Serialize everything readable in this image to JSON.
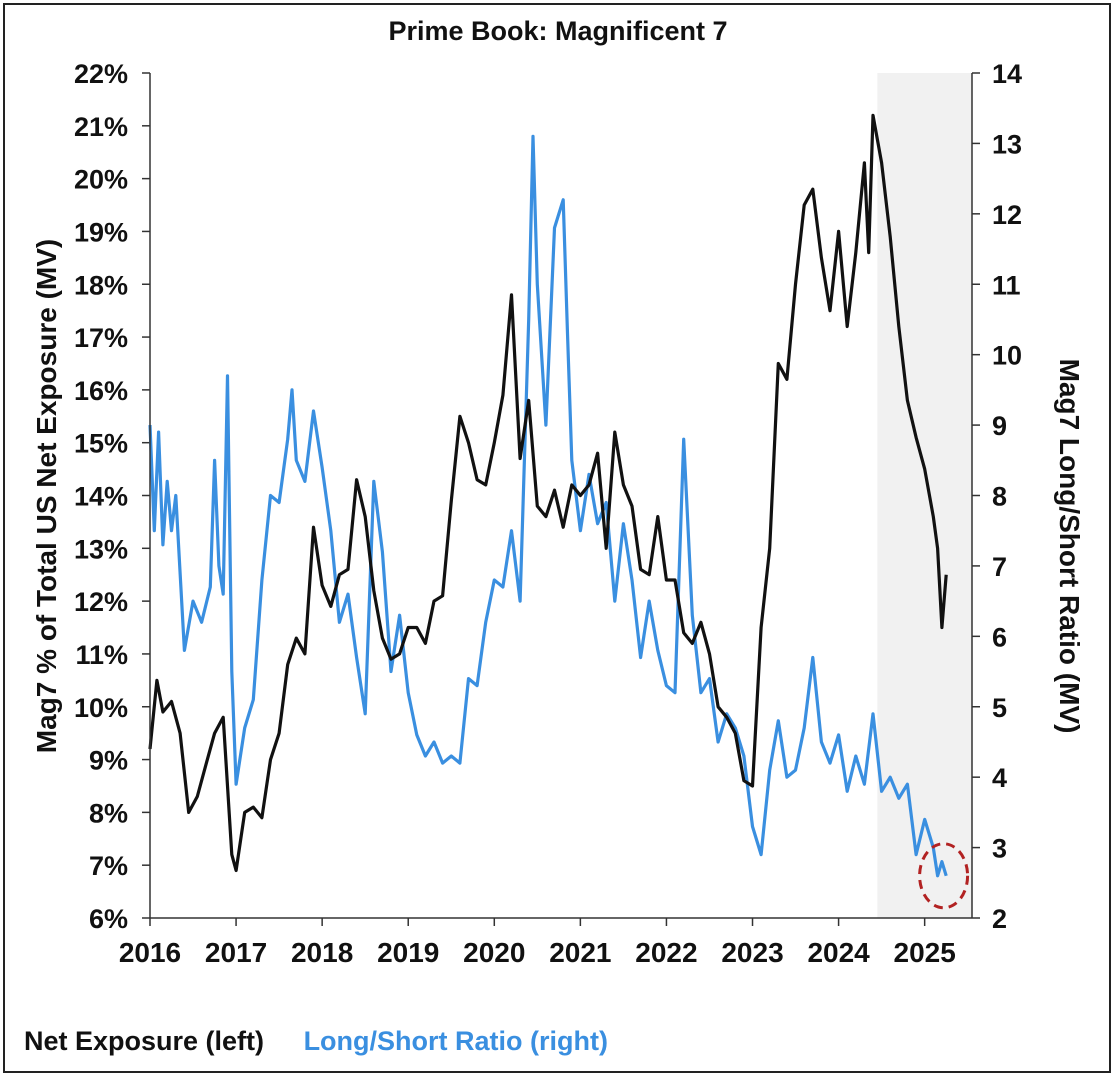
{
  "chart_data": {
    "type": "line",
    "title": "Prime Book: Magnificent 7",
    "y_left_label": "Mag7 % of Total US Net Exposure (MV)",
    "y_right_label": "Mag7 Long/Short Ratio (MV)",
    "x_ticks": [
      "2016",
      "2017",
      "2018",
      "2019",
      "2020",
      "2021",
      "2022",
      "2023",
      "2024",
      "2025"
    ],
    "y_left_ticks": [
      "6%",
      "7%",
      "8%",
      "9%",
      "10%",
      "11%",
      "12%",
      "13%",
      "14%",
      "15%",
      "16%",
      "17%",
      "18%",
      "19%",
      "20%",
      "21%",
      "22%"
    ],
    "y_right_ticks": [
      "2",
      "3",
      "4",
      "5",
      "6",
      "7",
      "8",
      "9",
      "10",
      "11",
      "12",
      "13",
      "14"
    ],
    "y_left_range": [
      6,
      22
    ],
    "y_right_range": [
      2,
      14
    ],
    "x_range": [
      2016.0,
      2025.55
    ],
    "shaded_region": [
      2024.45,
      2025.55
    ],
    "highlight_point": {
      "x": 2025.22,
      "y_right": 2.6
    },
    "series": [
      {
        "name": "Net Exposure (left)",
        "axis": "left",
        "color": "#111111",
        "x": [
          2016.0,
          2016.08,
          2016.15,
          2016.25,
          2016.35,
          2016.45,
          2016.55,
          2016.65,
          2016.75,
          2016.85,
          2016.95,
          2017.0,
          2017.1,
          2017.2,
          2017.3,
          2017.4,
          2017.5,
          2017.6,
          2017.7,
          2017.8,
          2017.9,
          2018.0,
          2018.1,
          2018.2,
          2018.3,
          2018.4,
          2018.5,
          2018.6,
          2018.7,
          2018.8,
          2018.9,
          2019.0,
          2019.1,
          2019.2,
          2019.3,
          2019.4,
          2019.5,
          2019.6,
          2019.7,
          2019.8,
          2019.9,
          2020.0,
          2020.1,
          2020.2,
          2020.3,
          2020.4,
          2020.5,
          2020.6,
          2020.7,
          2020.8,
          2020.9,
          2021.0,
          2021.1,
          2021.2,
          2021.3,
          2021.4,
          2021.5,
          2021.6,
          2021.7,
          2021.8,
          2021.9,
          2022.0,
          2022.1,
          2022.2,
          2022.3,
          2022.4,
          2022.5,
          2022.6,
          2022.7,
          2022.8,
          2022.9,
          2023.0,
          2023.1,
          2023.2,
          2023.3,
          2023.4,
          2023.5,
          2023.6,
          2023.7,
          2023.8,
          2023.9,
          2024.0,
          2024.1,
          2024.2,
          2024.3,
          2024.35,
          2024.4,
          2024.5,
          2024.6,
          2024.7,
          2024.8,
          2024.9,
          2025.0,
          2025.1,
          2025.15,
          2025.2,
          2025.25
        ],
        "values": [
          9.2,
          10.5,
          9.9,
          10.1,
          9.5,
          8.0,
          8.3,
          8.9,
          9.5,
          9.8,
          7.2,
          6.9,
          8.0,
          8.1,
          7.9,
          9.0,
          9.5,
          10.8,
          11.3,
          11.0,
          13.4,
          12.3,
          11.9,
          12.5,
          12.6,
          14.3,
          13.6,
          12.2,
          11.3,
          10.9,
          11.0,
          11.5,
          11.5,
          11.2,
          12.0,
          12.1,
          13.9,
          15.5,
          15.0,
          14.3,
          14.2,
          15.0,
          15.9,
          17.8,
          14.7,
          15.8,
          13.8,
          13.6,
          14.1,
          13.4,
          14.2,
          14.0,
          14.2,
          14.8,
          13.0,
          15.2,
          14.2,
          13.8,
          12.6,
          12.5,
          13.6,
          12.4,
          12.4,
          11.4,
          11.2,
          11.6,
          11.0,
          10.0,
          9.8,
          9.5,
          8.6,
          8.5,
          11.5,
          13.0,
          16.5,
          16.2,
          18.0,
          19.5,
          19.8,
          18.5,
          17.5,
          19.0,
          17.2,
          18.6,
          20.3,
          18.6,
          21.2,
          20.3,
          18.9,
          17.2,
          15.8,
          15.1,
          14.5,
          13.6,
          13.0,
          11.5,
          12.5
        ]
      },
      {
        "name": "Long/Short Ratio (right)",
        "axis": "right",
        "color": "#3a8fe0",
        "x": [
          2016.0,
          2016.05,
          2016.1,
          2016.15,
          2016.2,
          2016.25,
          2016.3,
          2016.4,
          2016.5,
          2016.6,
          2016.7,
          2016.75,
          2016.8,
          2016.85,
          2016.9,
          2016.95,
          2017.0,
          2017.1,
          2017.2,
          2017.3,
          2017.4,
          2017.5,
          2017.6,
          2017.65,
          2017.7,
          2017.8,
          2017.9,
          2018.0,
          2018.1,
          2018.2,
          2018.3,
          2018.4,
          2018.5,
          2018.6,
          2018.7,
          2018.8,
          2018.9,
          2019.0,
          2019.1,
          2019.2,
          2019.3,
          2019.4,
          2019.5,
          2019.6,
          2019.7,
          2019.8,
          2019.9,
          2020.0,
          2020.1,
          2020.2,
          2020.3,
          2020.4,
          2020.45,
          2020.5,
          2020.6,
          2020.7,
          2020.8,
          2020.85,
          2020.9,
          2021.0,
          2021.1,
          2021.2,
          2021.3,
          2021.4,
          2021.5,
          2021.6,
          2021.7,
          2021.8,
          2021.9,
          2022.0,
          2022.1,
          2022.2,
          2022.3,
          2022.4,
          2022.5,
          2022.6,
          2022.7,
          2022.8,
          2022.9,
          2023.0,
          2023.1,
          2023.2,
          2023.3,
          2023.4,
          2023.5,
          2023.6,
          2023.7,
          2023.8,
          2023.9,
          2024.0,
          2024.1,
          2024.2,
          2024.3,
          2024.4,
          2024.5,
          2024.6,
          2024.7,
          2024.8,
          2024.9,
          2025.0,
          2025.1,
          2025.15,
          2025.2,
          2025.25
        ],
        "values": [
          9.0,
          7.5,
          8.9,
          7.3,
          8.2,
          7.5,
          8.0,
          5.8,
          6.5,
          6.2,
          6.7,
          8.5,
          7.0,
          6.6,
          9.7,
          5.5,
          3.9,
          4.7,
          5.1,
          6.8,
          8.0,
          7.9,
          8.8,
          9.5,
          8.5,
          8.2,
          9.2,
          8.4,
          7.5,
          6.2,
          6.6,
          5.7,
          4.9,
          8.2,
          7.2,
          5.5,
          6.3,
          5.2,
          4.6,
          4.3,
          4.5,
          4.2,
          4.3,
          4.2,
          5.4,
          5.3,
          6.2,
          6.8,
          6.7,
          7.5,
          6.5,
          10.5,
          13.1,
          11.0,
          9.0,
          11.8,
          12.2,
          10.3,
          8.5,
          7.5,
          8.3,
          7.6,
          7.9,
          6.5,
          7.6,
          6.8,
          5.7,
          6.5,
          5.8,
          5.3,
          5.2,
          8.8,
          6.3,
          5.2,
          5.4,
          4.5,
          4.9,
          4.7,
          4.3,
          3.3,
          2.9,
          4.1,
          4.8,
          4.0,
          4.1,
          4.7,
          5.7,
          4.5,
          4.2,
          4.6,
          3.8,
          4.3,
          3.9,
          4.9,
          3.8,
          4.0,
          3.7,
          3.9,
          2.9,
          3.4,
          3.0,
          2.6,
          2.8,
          2.6
        ]
      }
    ],
    "legend": [
      {
        "label": "Net Exposure (left)",
        "color": "#111111"
      },
      {
        "label": "Long/Short Ratio (right)",
        "color": "#3a8fe0"
      }
    ]
  }
}
